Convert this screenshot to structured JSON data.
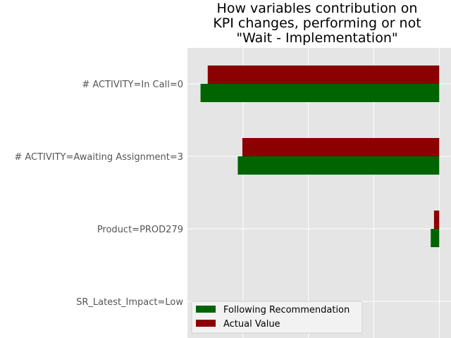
{
  "chart_data": {
    "type": "bar",
    "orientation": "horizontal",
    "title": "How variables contribution on KPI changes, performing or not \"Wait - Implementation\"",
    "title_lines": [
      "How variables contribution on",
      "KPI changes, performing or not",
      "\"Wait - Implementation\""
    ],
    "categories": [
      "# ACTIVITY=In Call=0",
      "# ACTIVITY=Awaiting Assignment=3",
      "Product=PROD279",
      "SR_Latest_Impact=Low"
    ],
    "series": [
      {
        "name": "Following Recommendation",
        "color": "#006400",
        "values": [
          -0.365,
          -0.308,
          -0.013,
          0
        ]
      },
      {
        "name": "Actual Value",
        "color": "#8b0000",
        "values": [
          -0.354,
          -0.301,
          -0.008,
          0
        ]
      }
    ],
    "xlim": [
      -0.385,
      0.018
    ],
    "grid": true,
    "legend_position": "lower-left"
  }
}
